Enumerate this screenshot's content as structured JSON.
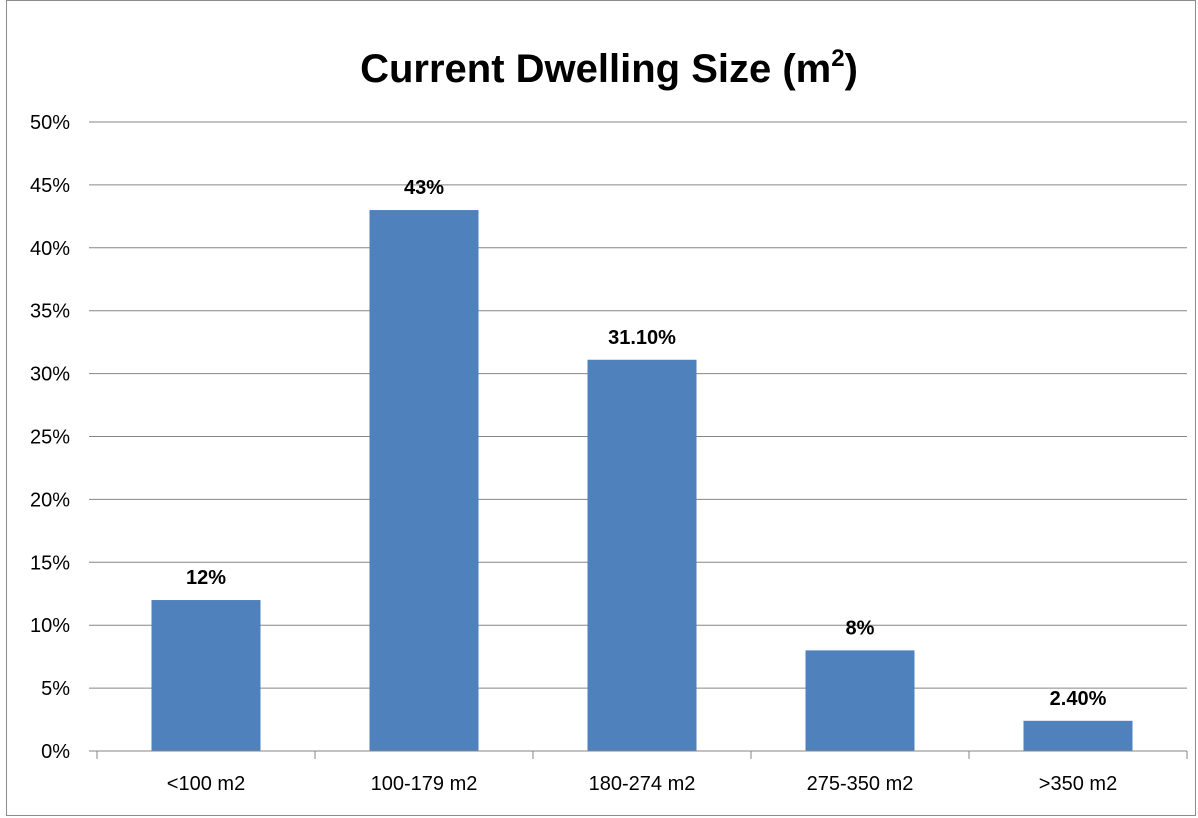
{
  "chart_data": {
    "type": "bar",
    "title": "Current Dwelling Size (m",
    "title_superscript": "2",
    "title_suffix": ")",
    "categories": [
      "<100 m2",
      "100-179 m2",
      "180-274 m2",
      "275-350 m2",
      ">350 m2"
    ],
    "values": [
      12,
      43,
      31.1,
      8,
      2.4
    ],
    "data_labels": [
      "12%",
      "43%",
      "31.10%",
      "8%",
      "2.40%"
    ],
    "y_ticks": [
      "0%",
      "5%",
      "10%",
      "15%",
      "20%",
      "25%",
      "30%",
      "35%",
      "40%",
      "45%",
      "50%"
    ],
    "ylim": [
      0,
      50
    ],
    "xlabel": "",
    "ylabel": "",
    "grid": true,
    "legend": "none",
    "bar_color": "#4f81bd",
    "gridline_color": "#868686"
  }
}
